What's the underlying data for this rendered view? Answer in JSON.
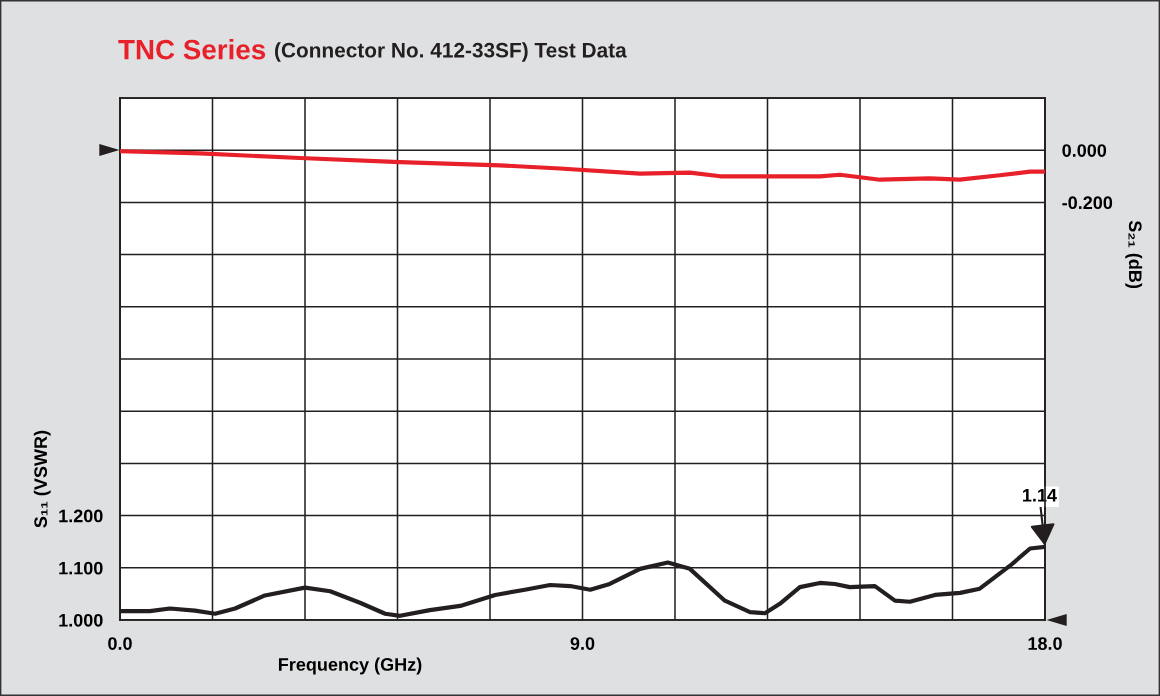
{
  "chart_data": {
    "type": "line",
    "title": "TNC Series",
    "subtitle": "(Connector No. 412-33SF) Test Data",
    "xlabel": "Frequency (GHz)",
    "ylabel": "S₁₁ (VSWR)",
    "y2label": "S₂₁ (dB)",
    "xlim": [
      0,
      18
    ],
    "ylim": [
      1.0,
      2.0
    ],
    "y2lim": [
      -1.8,
      0.2
    ],
    "xticks": [
      {
        "value": 0,
        "label": "0.0"
      },
      {
        "value": 1.8,
        "label": null
      },
      {
        "value": 3.6,
        "label": null
      },
      {
        "value": 5.4,
        "label": null
      },
      {
        "value": 7.2,
        "label": null
      },
      {
        "value": 9,
        "label": "9.0"
      },
      {
        "value": 10.8,
        "label": null
      },
      {
        "value": 12.6,
        "label": null
      },
      {
        "value": 14.4,
        "label": null
      },
      {
        "value": 16.2,
        "label": null
      },
      {
        "value": 18,
        "label": "18.0"
      }
    ],
    "yticks": [
      {
        "value": 1.0,
        "label": "1.000"
      },
      {
        "value": 1.1,
        "label": "1.100"
      },
      {
        "value": 1.2,
        "label": "1.200"
      },
      {
        "value": 1.3,
        "label": null
      },
      {
        "value": 1.4,
        "label": null
      },
      {
        "value": 1.5,
        "label": null
      },
      {
        "value": 1.6,
        "label": null
      },
      {
        "value": 1.7,
        "label": null
      },
      {
        "value": 1.8,
        "label": null
      },
      {
        "value": 1.9,
        "label": null
      },
      {
        "value": 2.0,
        "label": null
      }
    ],
    "y2ticks": [
      {
        "value": 0.2,
        "label": null
      },
      {
        "value": 0,
        "label": "0.000"
      },
      {
        "value": -0.2,
        "label": "-0.200"
      }
    ],
    "grid": true,
    "annotations": [
      {
        "text": "1.14",
        "x": 18,
        "y": 1.14
      }
    ],
    "series": [
      {
        "color": "#231f20",
        "axis": "y",
        "x": [
          0.0,
          0.58,
          0.97,
          1.46,
          1.85,
          2.24,
          2.82,
          3.6,
          4.09,
          4.67,
          5.16,
          5.45,
          6.03,
          6.62,
          7.3,
          7.88,
          8.37,
          8.76,
          9.15,
          9.53,
          10.12,
          10.66,
          11.09,
          11.77,
          12.26,
          12.55,
          12.84,
          13.23,
          13.62,
          13.91,
          14.2,
          14.69,
          15.08,
          15.37,
          15.86,
          16.35,
          16.73,
          16.93,
          17.32,
          17.71,
          18.0
        ],
        "values": [
          1.017,
          1.017,
          1.022,
          1.018,
          1.012,
          1.022,
          1.047,
          1.062,
          1.055,
          1.033,
          1.012,
          1.008,
          1.019,
          1.027,
          1.048,
          1.058,
          1.067,
          1.065,
          1.058,
          1.069,
          1.098,
          1.11,
          1.098,
          1.037,
          1.015,
          1.013,
          1.031,
          1.063,
          1.071,
          1.069,
          1.063,
          1.065,
          1.037,
          1.035,
          1.048,
          1.052,
          1.06,
          1.075,
          1.104,
          1.137,
          1.14
        ]
      },
      {
        "color": "#e8202a",
        "axis": "y2",
        "x": [
          0,
          1.56,
          3.5,
          5.45,
          7.39,
          8.56,
          10.12,
          11.09,
          11.68,
          13.62,
          14.01,
          14.79,
          15.76,
          16.34,
          17.12,
          17.71,
          18.0
        ],
        "values": [
          -0.004,
          -0.012,
          -0.03,
          -0.046,
          -0.058,
          -0.07,
          -0.09,
          -0.086,
          -0.1,
          -0.1,
          -0.094,
          -0.113,
          -0.108,
          -0.113,
          -0.096,
          -0.082,
          -0.082
        ]
      }
    ]
  }
}
